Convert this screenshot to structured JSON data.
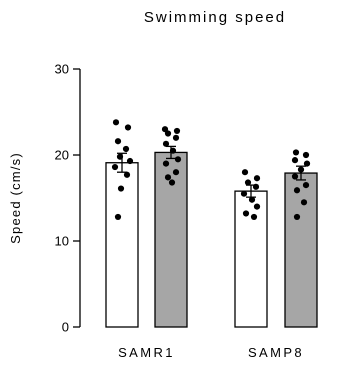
{
  "chart_data": {
    "type": "bar",
    "title": "Swimming speed",
    "xlabel": "",
    "ylabel": "Speed (cm/s)",
    "ylim": [
      0,
      30
    ],
    "yticks": [
      0,
      10,
      20,
      30
    ],
    "categories": [
      "SAMR1",
      "SAMP8"
    ],
    "colors": {
      "open_bar": "#ffffff",
      "filled_bar": "#a6a6a6",
      "outline": "#000000",
      "points": "#000000"
    },
    "bars": [
      {
        "category": "SAMR1",
        "fill": "open",
        "mean": 19.1,
        "sem": 1.1,
        "points": [
          23.8,
          23.2,
          21.6,
          20.7,
          19.8,
          19.3,
          18.6,
          17.7,
          16.1,
          12.8
        ]
      },
      {
        "category": "SAMR1",
        "fill": "filled",
        "mean": 20.3,
        "sem": 0.7,
        "points": [
          23.0,
          22.8,
          22.5,
          22.0,
          21.3,
          20.5,
          19.5,
          19.0,
          18.0,
          17.4,
          16.8
        ]
      },
      {
        "category": "SAMP8",
        "fill": "open",
        "mean": 15.8,
        "sem": 0.7,
        "points": [
          18.0,
          17.3,
          16.8,
          16.3,
          15.5,
          14.8,
          14.0,
          13.2,
          12.8
        ]
      },
      {
        "category": "SAMP8",
        "fill": "filled",
        "mean": 17.9,
        "sem": 0.8,
        "points": [
          20.3,
          20.0,
          19.4,
          19.0,
          18.3,
          17.5,
          16.5,
          15.9,
          14.5,
          12.8
        ]
      }
    ]
  }
}
